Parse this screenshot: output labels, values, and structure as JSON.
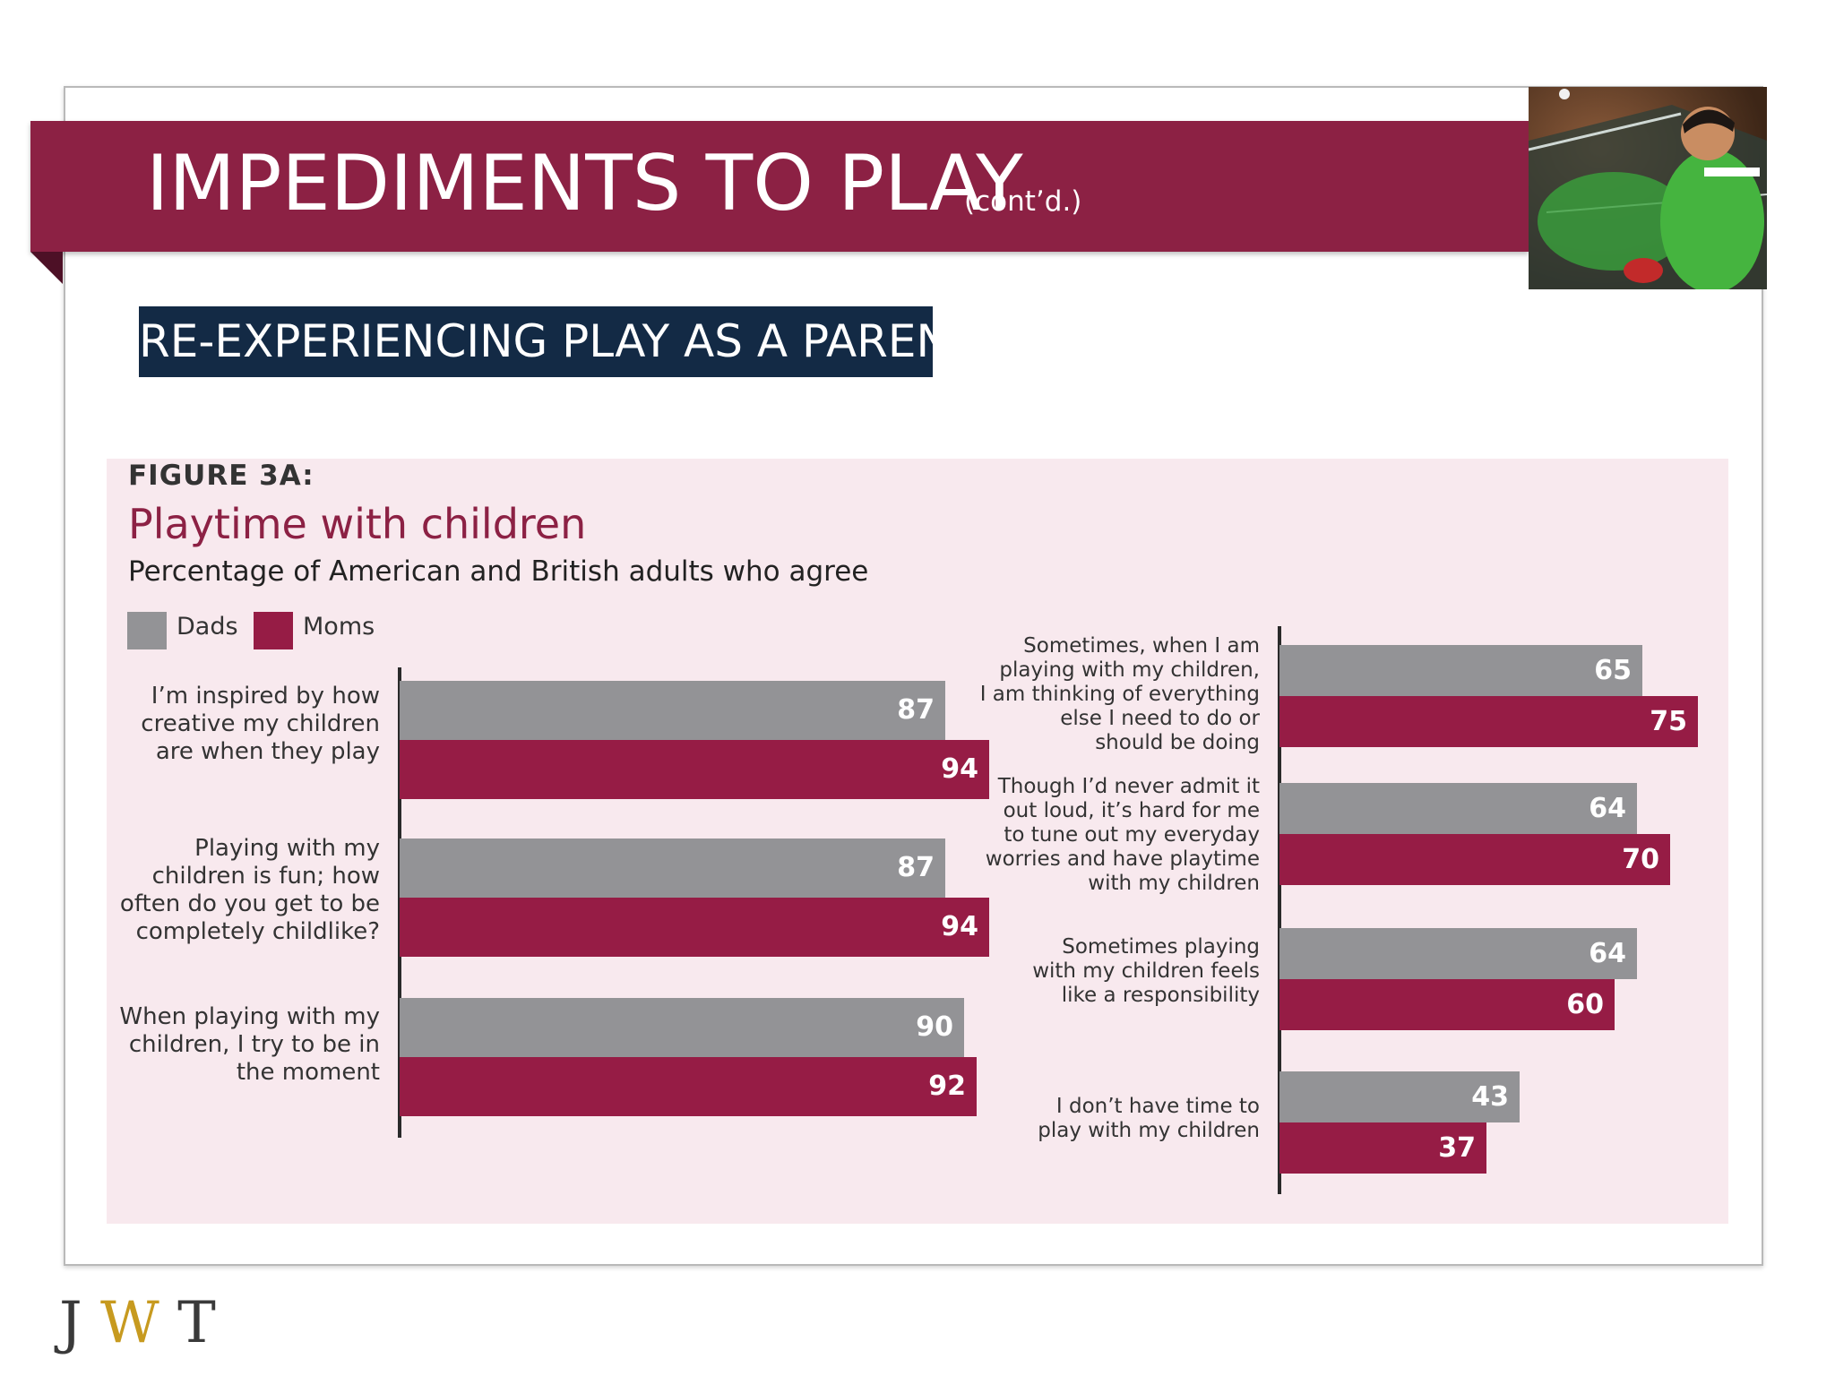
{
  "slide": {
    "title": "IMPEDIMENTS TO PLAY",
    "title_suffix": "(cont’d.)",
    "section": "RE-EXPERIENCING PLAY AS A PARENT",
    "photo_icon": "ping-pong-player-photo"
  },
  "figure": {
    "label": "FIGURE 3A:",
    "title": "Playtime with children",
    "subtitle": "Percentage of American and British adults who agree"
  },
  "legend": {
    "dads": "Dads",
    "moms": "Moms"
  },
  "colors": {
    "banner": "#8c2144",
    "section_bg": "#132a45",
    "panel_bg": "#f8e9ee",
    "dads": "#939396",
    "moms": "#961c45",
    "logo_accent": "#c79a1f"
  },
  "chart_data": [
    {
      "type": "bar",
      "orientation": "horizontal",
      "categories": [
        "I’m inspired by how creative my children are when they play",
        "Playing with my children is fun; how often do you get to be completely childlike?",
        "When playing with my children, I try to be in the moment"
      ],
      "series": [
        {
          "name": "Dads",
          "values": [
            87,
            87,
            90
          ]
        },
        {
          "name": "Moms",
          "values": [
            94,
            94,
            92
          ]
        }
      ],
      "xlim": [
        0,
        100
      ],
      "legend": "top-left",
      "grid": false
    },
    {
      "type": "bar",
      "orientation": "horizontal",
      "categories": [
        "Sometimes, when I am playing with my children, I am thinking of everything else I need to do or should be doing",
        "Though I’d never admit it out loud, it’s hard for me to tune out my everyday worries and have playtime with my children",
        "Sometimes playing with my children feels like a responsibility",
        "I don’t have time to play with my children"
      ],
      "series": [
        {
          "name": "Dads",
          "values": [
            65,
            64,
            64,
            43
          ]
        },
        {
          "name": "Moms",
          "values": [
            75,
            70,
            60,
            37
          ]
        }
      ],
      "xlim": [
        0,
        100
      ],
      "grid": false
    }
  ],
  "logo": {
    "j": "J",
    "w": "W",
    "t": "T"
  }
}
